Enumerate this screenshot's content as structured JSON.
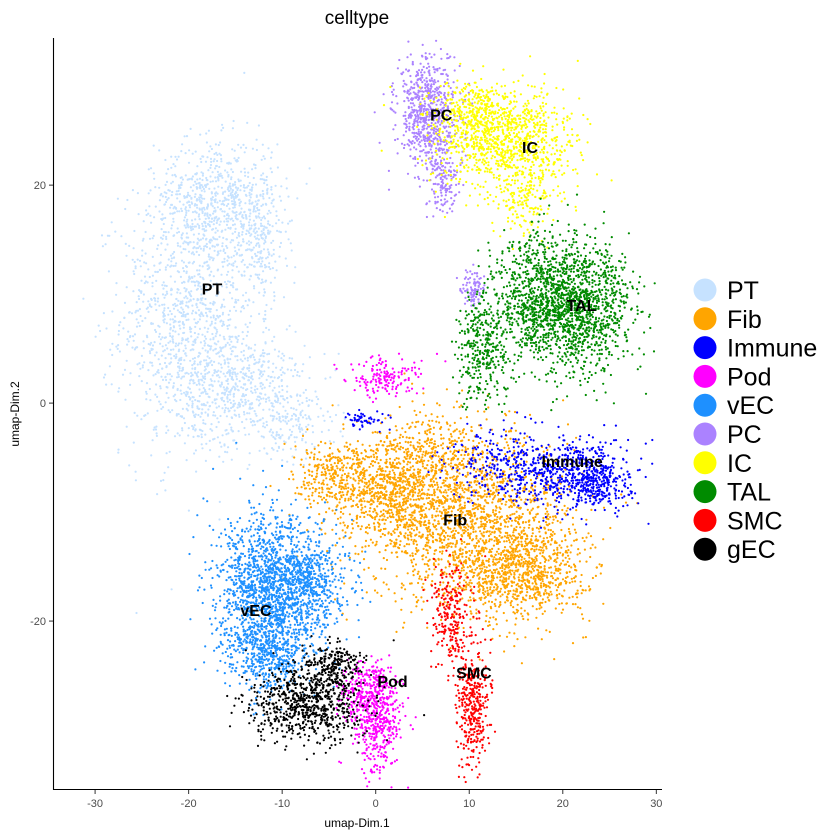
{
  "chart_data": {
    "type": "scatter",
    "title": "celltype",
    "xlabel": "umap-Dim.1",
    "ylabel": "umap-Dim.2",
    "xlim": [
      -34.5,
      30.5
    ],
    "ylim": [
      -35.5,
      33.5
    ],
    "xticks": [
      -30,
      -20,
      -10,
      0,
      10,
      20,
      30
    ],
    "yticks": [
      -20,
      0,
      20
    ],
    "grid": false,
    "legend_position": "right",
    "point_size": "small",
    "categories": [
      {
        "name": "PT",
        "color": "#C6E2FF"
      },
      {
        "name": "Fib",
        "color": "#FFA500"
      },
      {
        "name": "Immune",
        "color": "#0000FF"
      },
      {
        "name": "Pod",
        "color": "#FF00FF"
      },
      {
        "name": "vEC",
        "color": "#1E90FF"
      },
      {
        "name": "PC",
        "color": "#AB82FF"
      },
      {
        "name": "IC",
        "color": "#FFFF00"
      },
      {
        "name": "TAL",
        "color": "#008B00"
      },
      {
        "name": "SMC",
        "color": "#FF0000"
      },
      {
        "name": "gEC",
        "color": "#000000"
      }
    ],
    "cluster_labels": [
      {
        "text": "PT",
        "x": -17.5,
        "y": 10.5
      },
      {
        "text": "PC",
        "x": 7,
        "y": 26.5
      },
      {
        "text": "IC",
        "x": 16.5,
        "y": 23.5
      },
      {
        "text": "TAL",
        "x": 22,
        "y": 9
      },
      {
        "text": "Immune",
        "x": 21,
        "y": -5.3
      },
      {
        "text": "Fib",
        "x": 8.5,
        "y": -10.7
      },
      {
        "text": "vEC",
        "x": -12.8,
        "y": -19
      },
      {
        "text": "SMC",
        "x": 10.5,
        "y": -24.7
      },
      {
        "text": "Pod",
        "x": 1.8,
        "y": -25.5
      }
    ],
    "clusters": [
      {
        "category": "PT",
        "n": 2600,
        "blobs": [
          {
            "cx": -20,
            "cy": 8,
            "sx": 3.6,
            "sy": 6.5,
            "w": 0.45
          },
          {
            "cx": -17,
            "cy": 19,
            "sx": 3.0,
            "sy": 2.6,
            "w": 0.2
          },
          {
            "cx": -14,
            "cy": 1.5,
            "sx": 3.5,
            "sy": 2.6,
            "w": 0.2
          },
          {
            "cx": -12.5,
            "cy": 15,
            "sx": 1.5,
            "sy": 3.0,
            "w": 0.1
          },
          {
            "cx": -9,
            "cy": -2,
            "sx": 2.5,
            "sy": 1.5,
            "w": 0.05
          }
        ]
      },
      {
        "category": "Fib",
        "n": 3800,
        "blobs": [
          {
            "cx": 10,
            "cy": -10.5,
            "sx": 5.5,
            "sy": 3.8,
            "w": 0.45
          },
          {
            "cx": 15.5,
            "cy": -15.5,
            "sx": 3.5,
            "sy": 2.2,
            "w": 0.22
          },
          {
            "cx": 2,
            "cy": -8,
            "sx": 3.0,
            "sy": 2.6,
            "w": 0.18
          },
          {
            "cx": -3.5,
            "cy": -7,
            "sx": 2.6,
            "sy": 1.8,
            "w": 0.1
          },
          {
            "cx": 6,
            "cy": -4,
            "sx": 2.5,
            "sy": 2.0,
            "w": 0.05
          }
        ]
      },
      {
        "category": "Immune",
        "n": 1000,
        "blobs": [
          {
            "cx": 20.5,
            "cy": -6.5,
            "sx": 3.2,
            "sy": 1.6,
            "w": 0.55
          },
          {
            "cx": 24,
            "cy": -7.2,
            "sx": 1.6,
            "sy": 1.2,
            "w": 0.2
          },
          {
            "cx": 13,
            "cy": -5.5,
            "sx": 2.6,
            "sy": 1.7,
            "w": 0.2
          },
          {
            "cx": -1,
            "cy": -1.5,
            "sx": 1.2,
            "sy": 0.4,
            "w": 0.05
          }
        ]
      },
      {
        "category": "Pod",
        "n": 800,
        "blobs": [
          {
            "cx": 0.3,
            "cy": -29,
            "sx": 1.3,
            "sy": 2.5,
            "w": 0.55
          },
          {
            "cx": -1.5,
            "cy": -26.5,
            "sx": 1.4,
            "sy": 1.4,
            "w": 0.25
          },
          {
            "cx": 1,
            "cy": 2.3,
            "sx": 2.0,
            "sy": 0.9,
            "w": 0.2
          }
        ]
      },
      {
        "category": "vEC",
        "n": 2400,
        "blobs": [
          {
            "cx": -12,
            "cy": -17.5,
            "sx": 2.5,
            "sy": 3.6,
            "w": 0.55
          },
          {
            "cx": -7.5,
            "cy": -16.5,
            "sx": 2.3,
            "sy": 2.6,
            "w": 0.3
          },
          {
            "cx": -11,
            "cy": -23,
            "sx": 2.0,
            "sy": 1.5,
            "w": 0.15
          }
        ]
      },
      {
        "category": "PC",
        "n": 900,
        "blobs": [
          {
            "cx": 5.5,
            "cy": 26.5,
            "sx": 1.6,
            "sy": 2.5,
            "w": 0.75
          },
          {
            "cx": 7.2,
            "cy": 20.5,
            "sx": 0.9,
            "sy": 1.6,
            "w": 0.15
          },
          {
            "cx": 10.5,
            "cy": 10.5,
            "sx": 0.7,
            "sy": 0.8,
            "w": 0.1
          }
        ]
      },
      {
        "category": "IC",
        "n": 1400,
        "blobs": [
          {
            "cx": 14,
            "cy": 24,
            "sx": 3.6,
            "sy": 2.4,
            "w": 0.7
          },
          {
            "cx": 10.5,
            "cy": 26.5,
            "sx": 2.0,
            "sy": 1.6,
            "w": 0.2
          },
          {
            "cx": 16,
            "cy": 18.5,
            "sx": 1.6,
            "sy": 1.6,
            "w": 0.1
          }
        ]
      },
      {
        "category": "TAL",
        "n": 2200,
        "blobs": [
          {
            "cx": 21.5,
            "cy": 9,
            "sx": 3.0,
            "sy": 3.0,
            "w": 0.6
          },
          {
            "cx": 16.5,
            "cy": 9.5,
            "sx": 2.2,
            "sy": 2.8,
            "w": 0.25
          },
          {
            "cx": 11.5,
            "cy": 5,
            "sx": 1.6,
            "sy": 2.6,
            "w": 0.15
          }
        ]
      },
      {
        "category": "SMC",
        "n": 600,
        "blobs": [
          {
            "cx": 10.5,
            "cy": -27.5,
            "sx": 0.9,
            "sy": 2.8,
            "w": 0.6
          },
          {
            "cx": 8,
            "cy": -19.5,
            "sx": 1.1,
            "sy": 2.3,
            "w": 0.4
          }
        ]
      },
      {
        "category": "gEC",
        "n": 1000,
        "blobs": [
          {
            "cx": -7.5,
            "cy": -27.5,
            "sx": 3.0,
            "sy": 1.8,
            "w": 0.8
          },
          {
            "cx": -4.5,
            "cy": -24,
            "sx": 1.5,
            "sy": 1.0,
            "w": 0.2
          }
        ]
      }
    ]
  }
}
